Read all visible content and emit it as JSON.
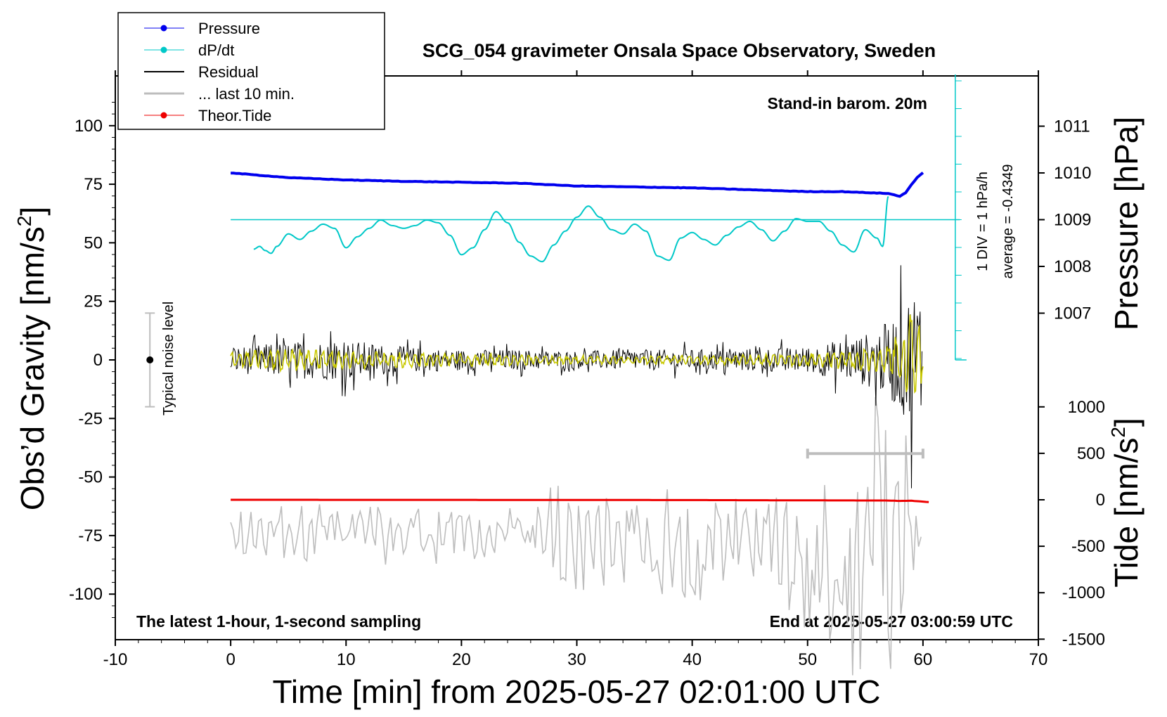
{
  "title": "SCG_054 gravimeter Onsala Space Observatory, Sweden",
  "subtitle_left": "The latest 1-hour, 1-second sampling",
  "subtitle_right": "End at 2025-05-27 03:00:59 UTC",
  "stand_in_note": "Stand-in barom. 20m",
  "noise_label": "Typical noise level",
  "dpdt_scale_label": "1 DIV = 1 hPa/h",
  "dpdt_average_label": "average = -0.4349",
  "axes": {
    "xlabel": "Time [min] from 2025-05-27 02:01:00 UTC",
    "ylabel_left_main": "Obs’d Gravity [nm/s",
    "ylabel_left_sup": "2",
    "ylabel_left_end": "]",
    "ylabel_right_pressure": "Pressure [hPa]",
    "ylabel_right_tide_main": "Tide [nm/s",
    "ylabel_right_tide_sup": "2",
    "ylabel_right_tide_end": "]"
  },
  "chart_data": {
    "type": "line",
    "xlim": [
      -10,
      70
    ],
    "ylim_gravity": [
      -120,
      120
    ],
    "x_ticks": [
      "-10",
      "0",
      "10",
      "20",
      "30",
      "40",
      "50",
      "60",
      "70"
    ],
    "y_ticks_gravity": [
      "100",
      "75",
      "50",
      "25",
      "0",
      "-25",
      "-50",
      "-75",
      "-100"
    ],
    "y_ticks_pressure": [
      "1011",
      "1010",
      "1009",
      "1008",
      "1007"
    ],
    "y_ticks_tide": [
      "1000",
      "500",
      "0",
      "-500",
      "-1000",
      "-1500"
    ],
    "legend": [
      {
        "label": "Pressure",
        "color": "#0000ee",
        "marker": true
      },
      {
        "label": "dP/dt",
        "color": "#00c8c8",
        "marker": true
      },
      {
        "label": "Residual",
        "color": "#000000",
        "marker": false
      },
      {
        "label": "... last 10 min.",
        "color": "#bdbdbd",
        "marker": false
      },
      {
        "label": "Theor.Tide",
        "color": "#ee0000",
        "marker": true
      }
    ],
    "series": [
      {
        "name": "Pressure",
        "unit": "hPa",
        "color": "#0000ee",
        "x": [
          0,
          5,
          10,
          15,
          20,
          25,
          30,
          35,
          40,
          45,
          50,
          53,
          55,
          57,
          58,
          58.5,
          59,
          59.5,
          60
        ],
        "y": [
          1010.0,
          1009.9,
          1009.85,
          1009.82,
          1009.8,
          1009.78,
          1009.72,
          1009.7,
          1009.68,
          1009.64,
          1009.6,
          1009.6,
          1009.58,
          1009.56,
          1009.5,
          1009.58,
          1009.75,
          1009.9,
          1010.0
        ]
      },
      {
        "name": "dP/dt",
        "unit": "hPa/h",
        "color": "#00c8c8",
        "reference_level": 1009.0,
        "average": -0.4349,
        "x": [
          2,
          2.5,
          3,
          3.5,
          4,
          5,
          6,
          7,
          8,
          9,
          10,
          11,
          12,
          13,
          14,
          15,
          16,
          17,
          18,
          19,
          20,
          21,
          22,
          23,
          24,
          25,
          26,
          27,
          28,
          29,
          30,
          31,
          32,
          33,
          34,
          35,
          36,
          37,
          38,
          39,
          40,
          41,
          42,
          43,
          44,
          45,
          46,
          47,
          48,
          49,
          50,
          51,
          52,
          53,
          54,
          55,
          56,
          56.5,
          57
        ],
        "y": [
          -1.1,
          -1.0,
          -1.15,
          -1.25,
          -1.0,
          -0.55,
          -0.75,
          -0.45,
          -0.2,
          -0.35,
          -1.05,
          -0.65,
          -0.35,
          -0.05,
          -0.25,
          -0.35,
          -0.25,
          -0.05,
          -0.15,
          -0.6,
          -1.3,
          -1.05,
          -0.4,
          0.25,
          -0.15,
          -0.85,
          -1.35,
          -1.55,
          -0.95,
          -0.45,
          0.05,
          0.45,
          0.05,
          -0.4,
          -0.55,
          -0.2,
          -0.45,
          -1.35,
          -1.5,
          -0.7,
          -0.5,
          -0.75,
          -0.95,
          -0.6,
          -0.3,
          -0.1,
          -0.4,
          -0.8,
          -0.45,
          0.0,
          -0.1,
          -0.1,
          -0.45,
          -0.95,
          -1.2,
          -0.4,
          -0.7,
          -1.0,
          0.8
        ]
      },
      {
        "name": "Residual",
        "unit": "nm/s2",
        "color": "#000000",
        "x": [
          0,
          5,
          10,
          15,
          20,
          25,
          30,
          35,
          40,
          45,
          50,
          55,
          57,
          58,
          59,
          59.5,
          60
        ],
        "y_envelope": [
          10,
          14,
          16,
          10,
          8,
          8,
          7,
          8,
          8,
          9,
          10,
          20,
          30,
          40,
          55,
          60,
          55
        ]
      },
      {
        "name": "Residual (smoothed)",
        "unit": "nm/s2",
        "color": "#c8c800",
        "x": [
          0,
          5,
          10,
          20,
          30,
          40,
          50,
          55,
          57,
          58,
          59,
          59.5,
          60
        ],
        "y_envelope": [
          4,
          5,
          4,
          3,
          2,
          2,
          3,
          5,
          7,
          12,
          22,
          25,
          5
        ]
      },
      {
        "name": "... last 10 min.",
        "unit": "nm/s2",
        "color": "#bdbdbd",
        "x_offset_min": 50,
        "x": [
          0,
          10,
          20,
          27,
          28,
          30,
          35,
          40,
          45,
          48,
          50,
          52,
          54,
          55,
          56,
          57,
          58,
          59,
          60
        ],
        "y_center": [
          -75,
          -73,
          -75,
          -76,
          -76,
          -78,
          -78,
          -80,
          -80,
          -80,
          -85,
          -85,
          -90,
          -80,
          -75,
          -70,
          -70,
          -70,
          -72
        ],
        "y_spread": [
          12,
          12,
          12,
          12,
          30,
          20,
          20,
          22,
          25,
          25,
          30,
          35,
          45,
          50,
          60,
          65,
          55,
          40,
          30
        ]
      },
      {
        "name": "Theor.Tide",
        "unit": "nm/s2",
        "color": "#ee0000",
        "x": [
          0,
          20,
          40,
          57,
          58,
          59,
          59.5,
          60,
          60.5
        ],
        "y": [
          0,
          -1,
          -3,
          -8,
          -12,
          -10,
          -15,
          -20,
          -25
        ]
      }
    ],
    "noise_level": {
      "x": -7,
      "center": 0,
      "half_range": 20
    },
    "last10_span": {
      "x_start": 50,
      "x_end": 60,
      "gravity_level": -40
    }
  }
}
